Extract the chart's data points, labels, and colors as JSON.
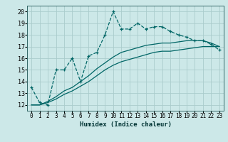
{
  "xlabel": "Humidex (Indice chaleur)",
  "background_color": "#cce8e8",
  "grid_color": "#aacccc",
  "line_color": "#006666",
  "xlim": [
    -0.5,
    23.5
  ],
  "ylim": [
    11.5,
    20.5
  ],
  "xticks": [
    0,
    1,
    2,
    3,
    4,
    5,
    6,
    7,
    8,
    9,
    10,
    11,
    12,
    13,
    14,
    15,
    16,
    17,
    18,
    19,
    20,
    21,
    22,
    23
  ],
  "yticks": [
    12,
    13,
    14,
    15,
    16,
    17,
    18,
    19,
    20
  ],
  "series1_x": [
    0,
    1,
    2,
    3,
    4,
    5,
    6,
    7,
    8,
    9,
    10,
    11,
    12,
    13,
    14,
    15,
    16,
    17,
    18,
    19,
    20,
    21,
    22,
    23
  ],
  "series1_y": [
    13.5,
    12.2,
    12.0,
    15.0,
    15.0,
    16.0,
    14.0,
    16.2,
    16.5,
    18.0,
    20.0,
    18.5,
    18.5,
    19.0,
    18.5,
    18.7,
    18.7,
    18.3,
    18.0,
    17.8,
    17.5,
    17.5,
    17.2,
    16.7
  ],
  "series2_x": [
    0,
    1,
    2,
    3,
    4,
    5,
    6,
    7,
    8,
    9,
    10,
    11,
    12,
    13,
    14,
    15,
    16,
    17,
    18,
    19,
    20,
    21,
    22,
    23
  ],
  "series2_y": [
    12.0,
    12.0,
    12.2,
    12.5,
    12.9,
    13.2,
    13.6,
    14.0,
    14.5,
    15.0,
    15.4,
    15.7,
    15.9,
    16.1,
    16.3,
    16.5,
    16.6,
    16.6,
    16.7,
    16.8,
    16.9,
    17.0,
    17.0,
    17.0
  ],
  "series3_x": [
    0,
    1,
    2,
    3,
    4,
    5,
    6,
    7,
    8,
    9,
    10,
    11,
    12,
    13,
    14,
    15,
    16,
    17,
    18,
    19,
    20,
    21,
    22,
    23
  ],
  "series3_y": [
    12.0,
    12.0,
    12.3,
    12.7,
    13.2,
    13.5,
    14.0,
    14.5,
    15.1,
    15.6,
    16.1,
    16.5,
    16.7,
    16.9,
    17.1,
    17.2,
    17.3,
    17.3,
    17.4,
    17.5,
    17.5,
    17.5,
    17.3,
    17.0
  ],
  "xlabel_fontsize": 6.5,
  "tick_fontsize": 5.5,
  "ytick_fontsize": 6.0
}
